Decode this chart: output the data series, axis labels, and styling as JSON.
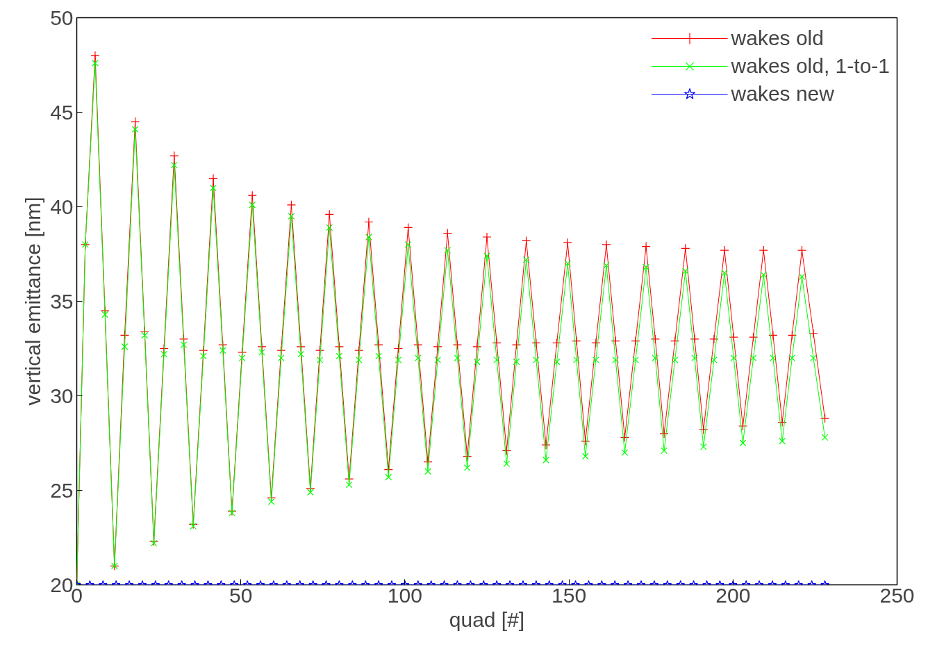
{
  "chart_data": {
    "type": "line",
    "xlabel": "quad [#]",
    "ylabel": "vertical emittance [nm]",
    "xlim": [
      0,
      250
    ],
    "ylim": [
      20,
      50
    ],
    "xticks": [
      0,
      50,
      100,
      150,
      200,
      250
    ],
    "yticks": [
      20,
      25,
      30,
      35,
      40,
      45,
      50
    ],
    "grid": false,
    "legend": "top right",
    "line_style": "solid",
    "x": [
      0,
      2.6,
      5.6,
      8.6,
      11.5,
      14.6,
      17.8,
      20.7,
      23.5,
      26.6,
      29.7,
      32.6,
      35.5,
      38.6,
      41.6,
      44.5,
      47.3,
      50.4,
      53.5,
      56.4,
      59.3,
      62.3,
      65.4,
      68.3,
      71.2,
      74.1,
      77,
      80,
      83,
      86,
      89,
      92,
      95,
      98,
      101,
      104,
      107,
      110,
      113,
      116,
      119,
      122,
      125,
      128,
      131,
      134,
      137,
      140,
      143,
      146.3,
      149.6,
      152.3,
      155,
      158.2,
      161.4,
      164.2,
      167,
      170.3,
      173.5,
      176.3,
      179,
      182.3,
      185.5,
      188.3,
      191,
      194.2,
      197.4,
      200.2,
      203,
      206.2,
      209.3,
      212.2,
      215,
      218,
      221,
      224.5,
      228
    ],
    "series": [
      {
        "name": "wakes old",
        "color": "#ff0000",
        "marker": "cross",
        "values": [
          20,
          38,
          48,
          34.5,
          21.0,
          33.2,
          44.5,
          33.4,
          22.3,
          32.5,
          42.7,
          33.0,
          23.2,
          32.4,
          41.5,
          32.7,
          23.9,
          32.3,
          40.6,
          32.6,
          24.6,
          32.4,
          40.1,
          32.6,
          25.1,
          32.4,
          39.6,
          32.6,
          25.6,
          32.4,
          39.2,
          32.7,
          26.1,
          32.5,
          38.9,
          32.7,
          26.5,
          32.6,
          38.6,
          32.7,
          26.8,
          32.6,
          38.4,
          32.8,
          27.1,
          32.7,
          38.2,
          32.8,
          27.4,
          32.8,
          38.1,
          32.9,
          27.6,
          32.8,
          38.0,
          32.9,
          27.8,
          32.9,
          37.9,
          33.0,
          28.0,
          32.9,
          37.8,
          33.0,
          28.2,
          33.0,
          37.7,
          33.1,
          28.4,
          33.1,
          37.7,
          33.2,
          28.6,
          33.2,
          37.7,
          33.3,
          28.8
        ]
      },
      {
        "name": "wakes old, 1-to-1",
        "color": "#00ff00",
        "marker": "x",
        "values": [
          20,
          38,
          47.6,
          34.3,
          21.0,
          32.6,
          44.1,
          33.2,
          22.2,
          32.2,
          42.2,
          32.7,
          23.1,
          32.1,
          41.0,
          32.4,
          23.8,
          32.0,
          40.1,
          32.3,
          24.4,
          32.0,
          39.5,
          32.2,
          24.9,
          31.9,
          38.9,
          32.1,
          25.3,
          31.9,
          38.4,
          32.1,
          25.7,
          31.9,
          38.0,
          32.0,
          26.0,
          31.9,
          37.7,
          32.0,
          26.2,
          31.8,
          37.4,
          31.9,
          26.4,
          31.8,
          37.2,
          31.9,
          26.6,
          31.8,
          37.0,
          31.9,
          26.8,
          31.9,
          36.9,
          31.9,
          27.0,
          31.9,
          36.8,
          32.0,
          27.1,
          31.9,
          36.6,
          32.0,
          27.3,
          31.9,
          36.5,
          32.0,
          27.5,
          32.0,
          36.4,
          32.0,
          27.6,
          32.0,
          36.3,
          32.0,
          27.8
        ]
      },
      {
        "name": "wakes new",
        "color": "#0000ff",
        "marker": "star",
        "x": [
          0,
          4,
          8,
          12,
          16,
          20,
          24,
          28,
          32,
          36,
          40,
          44,
          48,
          52,
          56,
          60,
          64,
          68,
          72,
          76,
          80,
          84,
          88,
          92,
          96,
          100,
          104,
          108,
          112,
          116,
          120,
          124,
          128,
          132,
          136,
          140,
          144,
          148,
          152,
          156,
          160,
          164,
          168,
          172,
          176,
          180,
          184,
          188,
          192,
          196,
          200,
          204,
          208,
          212,
          216,
          220,
          224,
          228
        ],
        "values": [
          20,
          20,
          20,
          20,
          20,
          20,
          20,
          20,
          20,
          20,
          20,
          20,
          20,
          20,
          20,
          20,
          20,
          20,
          20,
          20,
          20,
          20,
          20,
          20,
          20,
          20,
          20,
          20,
          20,
          20,
          20,
          20,
          20,
          20,
          20,
          20,
          20,
          20,
          20,
          20,
          20,
          20,
          20,
          20,
          20,
          20,
          20,
          20,
          20,
          20,
          20,
          20,
          20,
          20,
          20,
          20,
          20,
          20
        ]
      }
    ]
  }
}
